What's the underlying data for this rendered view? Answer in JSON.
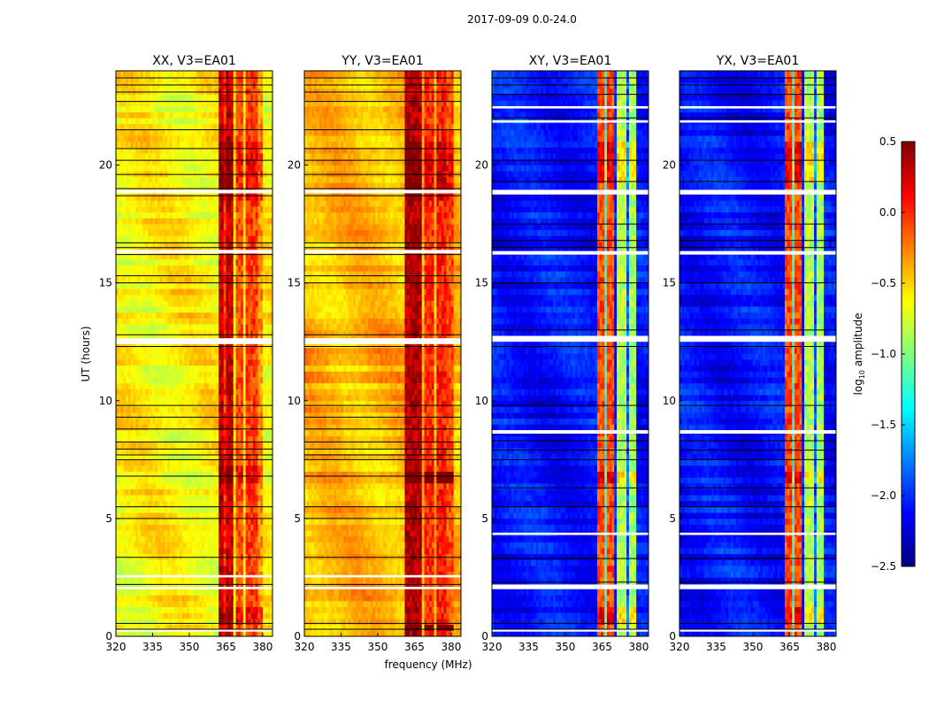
{
  "chart_data": {
    "type": "heatmap",
    "title": "2017-09-09 0.0-24.0",
    "xlabel": "frequency (MHz)",
    "ylabel": "UT (hours)",
    "xlim": [
      320,
      384
    ],
    "ylim": [
      0,
      24
    ],
    "xticks": [
      "320",
      "335",
      "350",
      "365",
      "380"
    ],
    "xtick_values": [
      320,
      335,
      350,
      365,
      380
    ],
    "yticks": [
      "0",
      "5",
      "10",
      "15",
      "20"
    ],
    "ytick_values": [
      0,
      5,
      10,
      15,
      20
    ],
    "colorbar": {
      "label_main": "log",
      "label_sub": "10",
      "label_rest": " amplitude",
      "range": [
        -2.5,
        0.5
      ],
      "colormap": "jet",
      "ticks": [
        "−2.5",
        "−2.0",
        "−1.5",
        "−1.0",
        "−0.5",
        "0.0",
        "0.5"
      ],
      "tick_values": [
        -2.5,
        -2.0,
        -1.5,
        -1.0,
        -0.5,
        0.0,
        0.5
      ]
    },
    "panels": [
      {
        "title": "XX, V3=EA01",
        "base": -0.6,
        "bands": [
          [
            362,
            364.5,
            0.3
          ],
          [
            364.5,
            365.5,
            0.0
          ],
          [
            365.5,
            368.5,
            0.3
          ],
          [
            369,
            372,
            -0.1
          ],
          [
            373,
            378,
            -0.05
          ],
          [
            378,
            380,
            -0.3
          ]
        ],
        "lines": [],
        "active_hours": [
          [
            0.5,
            1.2,
            0.2
          ],
          [
            6.5,
            7.2,
            0.25
          ],
          [
            18.5,
            21,
            0.2
          ]
        ],
        "flags": [
          [
            0.2,
            0.3
          ],
          [
            2.0,
            2.1
          ],
          [
            2.5,
            2.6
          ],
          [
            12.4,
            12.65
          ],
          [
            16.25,
            16.4
          ],
          [
            18.8,
            18.95
          ]
        ],
        "black_lines": [
          0.3,
          0.55,
          2.2,
          3.35,
          5.0,
          5.5,
          6.8,
          7.5,
          7.7,
          7.95,
          8.25,
          8.8,
          9.3,
          9.8,
          12.3,
          12.8,
          15.0,
          15.3,
          16.2,
          16.5,
          16.7,
          18.7,
          19.0,
          19.6,
          20.2,
          20.7,
          21.5,
          22.7,
          23.1,
          23.4,
          23.7
        ]
      },
      {
        "title": "YY, V3=EA01",
        "base": -0.4,
        "bands": [
          [
            361,
            364,
            0.35
          ],
          [
            364.5,
            368.5,
            0.35
          ],
          [
            369,
            373,
            0.0
          ],
          [
            374,
            378,
            0.05
          ],
          [
            378,
            381,
            -0.1
          ]
        ],
        "lines": [],
        "active_hours": [
          [
            0.2,
            0.5,
            0.8
          ],
          [
            6.6,
            7.0,
            0.8
          ],
          [
            18.5,
            21,
            0.2
          ]
        ],
        "flags": [
          [
            2.0,
            2.1
          ],
          [
            2.5,
            2.6
          ],
          [
            12.4,
            12.65
          ],
          [
            16.25,
            16.4
          ],
          [
            18.8,
            18.95
          ]
        ],
        "black_lines": [
          0.3,
          0.55,
          2.2,
          3.35,
          5.0,
          5.5,
          6.8,
          7.5,
          7.7,
          7.95,
          8.25,
          8.8,
          9.3,
          9.8,
          12.3,
          12.8,
          15.0,
          15.3,
          16.2,
          16.5,
          16.7,
          18.7,
          19.0,
          19.6,
          20.2,
          20.7,
          21.5,
          22.7,
          23.1,
          23.4,
          23.7
        ]
      },
      {
        "title": "XY, V3=EA01",
        "base": -2.1,
        "bands": [
          [
            363,
            366,
            -0.1
          ],
          [
            366,
            367.5,
            -1.3
          ],
          [
            367.5,
            370.5,
            -0.1
          ],
          [
            371,
            375,
            -0.85
          ],
          [
            375.5,
            376.5,
            -1.9
          ],
          [
            376.5,
            379,
            -0.9
          ]
        ],
        "lines": [
          [
            344,
            -1.5
          ]
        ],
        "active_hours": [
          [
            0.5,
            1.2,
            0.3
          ],
          [
            6.5,
            7.0,
            0.3
          ],
          [
            19.2,
            21,
            0.3
          ]
        ],
        "flags": [
          [
            0.2,
            0.3
          ],
          [
            2.0,
            2.2
          ],
          [
            4.3,
            4.4
          ],
          [
            8.6,
            8.75
          ],
          [
            12.5,
            12.75
          ],
          [
            16.2,
            16.35
          ],
          [
            18.75,
            18.95
          ],
          [
            21.8,
            21.9
          ],
          [
            22.4,
            22.5
          ]
        ],
        "black_lines": [
          0.3,
          0.55,
          2.3,
          3.3,
          5.5,
          6.3,
          7.5,
          7.9,
          8.3,
          9.8,
          12.3,
          13.0,
          15.0,
          16.5,
          16.8,
          17.5,
          19.3,
          20.2,
          22.0,
          23.0,
          23.4,
          23.7
        ]
      },
      {
        "title": "YX, V3=EA01",
        "base": -2.1,
        "bands": [
          [
            363,
            366,
            -0.1
          ],
          [
            366,
            367.5,
            -1.3
          ],
          [
            367.5,
            370.5,
            -0.1
          ],
          [
            371,
            375,
            -0.85
          ],
          [
            375.5,
            376.5,
            -1.9
          ],
          [
            376.5,
            379,
            -0.9
          ]
        ],
        "lines": [
          [
            344,
            -1.5
          ]
        ],
        "active_hours": [
          [
            0.5,
            1.2,
            0.3
          ],
          [
            6.5,
            7.0,
            0.3
          ],
          [
            19.2,
            21,
            0.3
          ]
        ],
        "flags": [
          [
            0.2,
            0.3
          ],
          [
            2.0,
            2.2
          ],
          [
            4.3,
            4.4
          ],
          [
            8.6,
            8.75
          ],
          [
            12.5,
            12.75
          ],
          [
            16.2,
            16.35
          ],
          [
            18.75,
            18.95
          ],
          [
            21.8,
            21.9
          ],
          [
            22.4,
            22.5
          ]
        ],
        "black_lines": [
          0.3,
          0.55,
          2.3,
          3.3,
          5.5,
          6.3,
          7.5,
          7.9,
          8.3,
          9.8,
          12.3,
          13.0,
          15.0,
          16.5,
          16.8,
          17.5,
          19.3,
          20.2,
          22.0,
          23.0,
          23.4,
          23.7
        ]
      }
    ]
  }
}
